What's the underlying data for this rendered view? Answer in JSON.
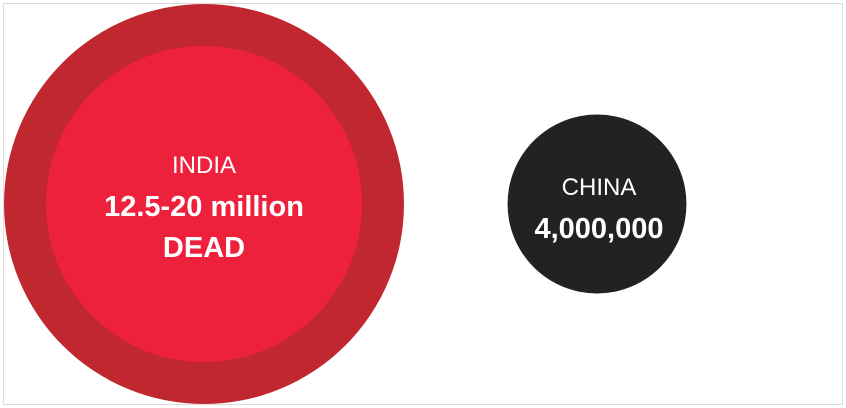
{
  "chart_data": {
    "type": "bubble",
    "title": "",
    "items": [
      {
        "country": "INDIA",
        "value_label_line1": "12.5-20 million",
        "value_label_line2": "DEAD",
        "value_min": 12500000,
        "value_max": 20000000,
        "outer_color": "#c0272f",
        "inner_color": "#ee213d"
      },
      {
        "country": "CHINA",
        "value_label_line1": "4,000,000",
        "value_label_line2": "",
        "value": 4000000,
        "color": "#222222"
      }
    ]
  }
}
